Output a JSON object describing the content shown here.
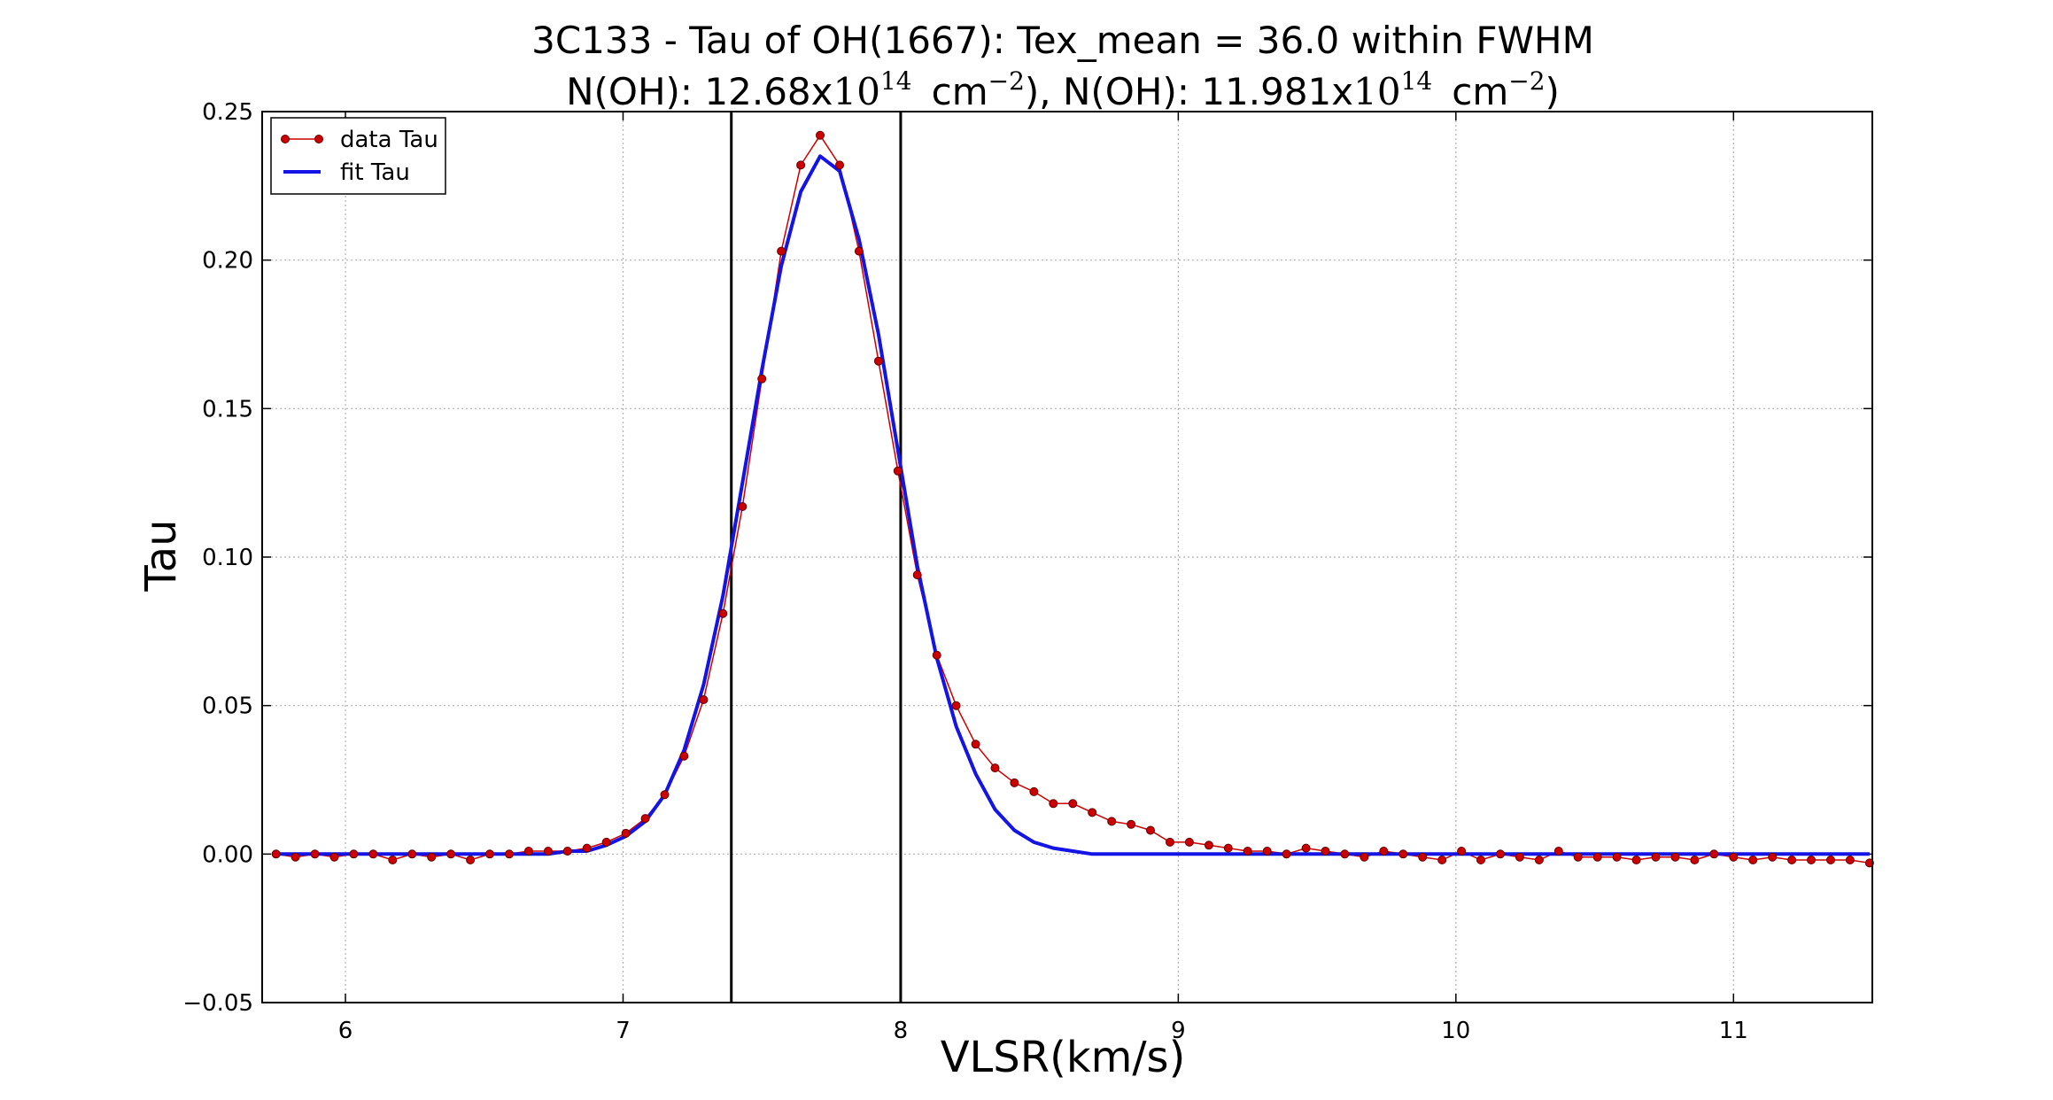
{
  "chart_data": {
    "type": "line",
    "title_line1": "3C133 - Tau of OH(1667): Tex_mean = 36.0 within FWHM",
    "title_line2": {
      "p1": "N(OH): 12.68x",
      "base1": "10",
      "exp1": "14",
      "unit1": "cm",
      "uexp1": "−2",
      "p2": "), N(OH): 11.981x",
      "base2": "10",
      "exp2": "14",
      "unit2": "cm",
      "uexp2": "−2",
      "p3": ")"
    },
    "xlabel": "VLSR(km/s)",
    "ylabel": "Tau",
    "xlim": [
      5.7,
      11.5
    ],
    "ylim": [
      -0.05,
      0.25
    ],
    "xticks": [
      6,
      7,
      8,
      9,
      10,
      11
    ],
    "xtick_labels": [
      "6",
      "7",
      "8",
      "9",
      "10",
      "11"
    ],
    "yticks": [
      -0.05,
      0.0,
      0.05,
      0.1,
      0.15,
      0.2,
      0.25
    ],
    "ytick_labels": [
      "−0.05",
      "0.00",
      "0.05",
      "0.10",
      "0.15",
      "0.20",
      "0.25"
    ],
    "grid": true,
    "legend_position": "top-left",
    "vlines": [
      7.39,
      8.0
    ],
    "colors": {
      "data": "#cc0000",
      "fit": "#1414e6",
      "vline": "#000000",
      "grid": "#b0b0b0"
    },
    "series": [
      {
        "name": "data Tau",
        "style": "line-markers",
        "x": [
          5.75,
          5.82,
          5.89,
          5.96,
          6.03,
          6.1,
          6.17,
          6.24,
          6.31,
          6.38,
          6.45,
          6.52,
          6.59,
          6.66,
          6.73,
          6.8,
          6.87,
          6.94,
          7.01,
          7.08,
          7.15,
          7.22,
          7.29,
          7.36,
          7.43,
          7.5,
          7.57,
          7.64,
          7.71,
          7.78,
          7.85,
          7.92,
          7.99,
          8.06,
          8.13,
          8.2,
          8.27,
          8.34,
          8.41,
          8.48,
          8.55,
          8.62,
          8.69,
          8.76,
          8.83,
          8.9,
          8.97,
          9.04,
          9.11,
          9.18,
          9.25,
          9.32,
          9.39,
          9.46,
          9.53,
          9.6,
          9.67,
          9.74,
          9.81,
          9.88,
          9.95,
          10.02,
          10.09,
          10.16,
          10.23,
          10.3,
          10.37,
          10.44,
          10.51,
          10.58,
          10.65,
          10.72,
          10.79,
          10.86,
          10.93,
          11.0,
          11.07,
          11.14,
          11.21,
          11.28,
          11.35,
          11.42,
          11.49
        ],
        "y": [
          0.0,
          -0.001,
          0.0,
          -0.001,
          0.0,
          0.0,
          -0.002,
          0.0,
          -0.001,
          0.0,
          -0.002,
          0.0,
          0.0,
          0.001,
          0.001,
          0.001,
          0.002,
          0.004,
          0.007,
          0.012,
          0.02,
          0.033,
          0.052,
          0.081,
          0.117,
          0.16,
          0.203,
          0.232,
          0.242,
          0.232,
          0.203,
          0.166,
          0.129,
          0.094,
          0.067,
          0.05,
          0.037,
          0.029,
          0.024,
          0.021,
          0.017,
          0.017,
          0.014,
          0.011,
          0.01,
          0.008,
          0.004,
          0.004,
          0.003,
          0.002,
          0.001,
          0.001,
          0.0,
          0.002,
          0.001,
          0.0,
          -0.001,
          0.001,
          0.0,
          -0.001,
          -0.002,
          0.001,
          -0.002,
          0.0,
          -0.001,
          -0.002,
          0.001,
          -0.001,
          -0.001,
          -0.001,
          -0.002,
          -0.001,
          -0.001,
          -0.002,
          0.0,
          -0.001,
          -0.002,
          -0.001,
          -0.002,
          -0.002,
          -0.002,
          -0.002,
          -0.003
        ]
      },
      {
        "name": "fit Tau",
        "style": "line",
        "x": [
          5.75,
          5.82,
          5.89,
          5.96,
          6.03,
          6.1,
          6.17,
          6.24,
          6.31,
          6.38,
          6.45,
          6.52,
          6.59,
          6.66,
          6.73,
          6.8,
          6.87,
          6.94,
          7.01,
          7.08,
          7.15,
          7.22,
          7.29,
          7.36,
          7.43,
          7.5,
          7.57,
          7.64,
          7.71,
          7.78,
          7.85,
          7.92,
          7.99,
          8.06,
          8.13,
          8.2,
          8.27,
          8.34,
          8.41,
          8.48,
          8.55,
          8.62,
          8.69,
          8.76,
          8.83,
          8.9,
          8.97,
          9.04,
          9.11,
          9.18,
          9.25,
          9.32,
          9.39,
          9.46,
          9.53,
          9.6,
          9.67,
          9.74,
          9.81,
          9.88,
          9.95,
          10.02,
          10.09,
          10.16,
          10.23,
          10.3,
          10.37,
          10.44,
          10.51,
          10.58,
          10.65,
          10.72,
          10.79,
          10.86,
          10.93,
          11.0,
          11.07,
          11.14,
          11.21,
          11.28,
          11.35,
          11.42,
          11.49
        ],
        "y": [
          0.0,
          0.0,
          0.0,
          0.0,
          0.0,
          0.0,
          0.0,
          0.0,
          0.0,
          0.0,
          0.0,
          0.0,
          0.0,
          0.0,
          0.0,
          0.001,
          0.001,
          0.003,
          0.006,
          0.011,
          0.02,
          0.035,
          0.057,
          0.087,
          0.125,
          0.163,
          0.198,
          0.223,
          0.235,
          0.23,
          0.207,
          0.175,
          0.136,
          0.097,
          0.066,
          0.043,
          0.027,
          0.015,
          0.008,
          0.004,
          0.002,
          0.001,
          0.0,
          0.0,
          0.0,
          0.0,
          0.0,
          0.0,
          0.0,
          0.0,
          0.0,
          0.0,
          0.0,
          0.0,
          0.0,
          0.0,
          0.0,
          0.0,
          0.0,
          0.0,
          0.0,
          0.0,
          0.0,
          0.0,
          0.0,
          0.0,
          0.0,
          0.0,
          0.0,
          0.0,
          0.0,
          0.0,
          0.0,
          0.0,
          0.0,
          0.0,
          0.0,
          0.0,
          0.0,
          0.0,
          0.0,
          0.0,
          0.0
        ]
      }
    ]
  }
}
